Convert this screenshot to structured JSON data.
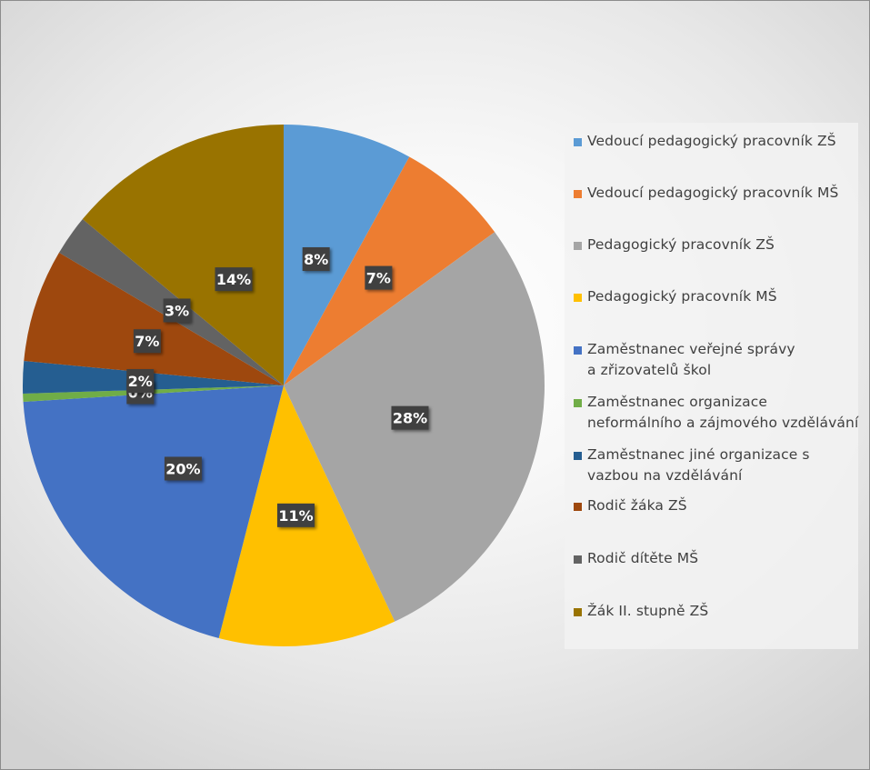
{
  "chart_data": {
    "type": "pie",
    "title": "",
    "start_angle_deg": 0,
    "direction": "clockwise",
    "legend_position": "right",
    "slices": [
      {
        "label": "Vedoucí pedagogický pracovník ZŠ",
        "value": 8,
        "display": "8%",
        "color": "#5B9BD5"
      },
      {
        "label": "Vedoucí pedagogický pracovník MŠ",
        "value": 7,
        "display": "7%",
        "color": "#ED7D31"
      },
      {
        "label": "Pedagogický pracovník ZŠ",
        "value": 28,
        "display": "28%",
        "color": "#A5A5A5"
      },
      {
        "label": "Pedagogický pracovník MŠ",
        "value": 11,
        "display": "11%",
        "color": "#FFC000"
      },
      {
        "label": "Zaměstnanec veřejné správy a zřizovatelů škol",
        "value": 20,
        "display": "20%",
        "color": "#4472C4"
      },
      {
        "label": "Zaměstnanec organizace neformálního a zájmového vzdělávání",
        "value": 0.5,
        "display": "0%",
        "color": "#70AD47"
      },
      {
        "label": "Zaměstnanec jiné organizace s vazbou na vzdělávání",
        "value": 2,
        "display": "2%",
        "color": "#255E91"
      },
      {
        "label": "Rodič žáka ZŠ",
        "value": 7,
        "display": "7%",
        "color": "#9E480E"
      },
      {
        "label": "Rodič dítěte MŠ",
        "value": 2.5,
        "display": "3%",
        "color": "#636363"
      },
      {
        "label": "Žák II. stupně ZŠ",
        "value": 14,
        "display": "14%",
        "color": "#997300"
      }
    ]
  },
  "legend": {
    "items": [
      {
        "label": "Vedoucí pedagogický pracovník ZŠ",
        "color": "#5B9BD5"
      },
      {
        "label": "Vedoucí pedagogický pracovník MŠ",
        "color": "#ED7D31"
      },
      {
        "label": "Pedagogický pracovník ZŠ",
        "color": "#A5A5A5"
      },
      {
        "label": "Pedagogický pracovník MŠ",
        "color": "#FFC000"
      },
      {
        "label": "Zaměstnanec veřejné správy a zřizovatelů škol",
        "color": "#4472C4"
      },
      {
        "label": "Zaměstnanec organizace neformálního a zájmového vzdělávání",
        "color": "#70AD47"
      },
      {
        "label": "Zaměstnanec jiné organizace s vazbou na vzdělávání",
        "color": "#255E91"
      },
      {
        "label": "Rodič žáka ZŠ",
        "color": "#9E480E"
      },
      {
        "label": "Rodič dítěte MŠ",
        "color": "#636363"
      },
      {
        "label": "Žák II. stupně ZŠ",
        "color": "#997300"
      }
    ]
  }
}
